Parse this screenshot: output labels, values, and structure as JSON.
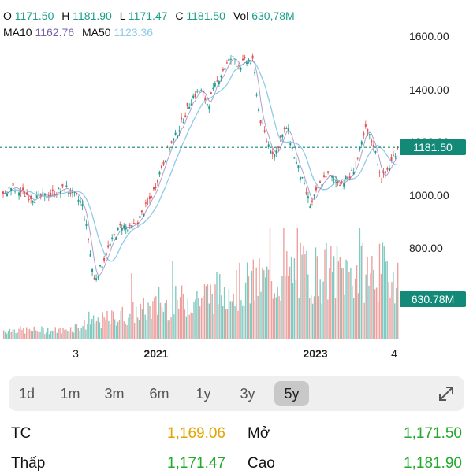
{
  "legend": {
    "o_label": "O",
    "o_value": "1171.50",
    "h_label": "H",
    "h_value": "1181.90",
    "l_label": "L",
    "l_value": "1171.47",
    "c_label": "C",
    "c_value": "1181.50",
    "vol_label": "Vol",
    "vol_value": "630,78M",
    "ma10_label": "MA10",
    "ma10_value": "1162.76",
    "ma50_label": "MA50",
    "ma50_value": "1123.36"
  },
  "price_axis": [
    "1600.00",
    "1400.00",
    "1200.00",
    "1000.00",
    "800.00"
  ],
  "current_price_label": "1181.50",
  "current_volume_label": "630.78M",
  "time_axis": [
    {
      "label": "3",
      "bold": false
    },
    {
      "label": "2021",
      "bold": true
    },
    {
      "label": "2023",
      "bold": true
    },
    {
      "label": "4",
      "bold": false
    }
  ],
  "ranges": [
    "1d",
    "1m",
    "3m",
    "6m",
    "1y",
    "3y",
    "5y"
  ],
  "active_range": "5y",
  "stats": {
    "tc_label": "TC",
    "tc_value": "1,169.06",
    "open_label": "Mở",
    "open_value": "1,171.50",
    "low_label": "Thấp",
    "low_value": "1,171.47",
    "high_label": "Cao",
    "high_value": "1,181.90"
  },
  "colors": {
    "up": "#1a9e8a",
    "down": "#e0524f",
    "ma10": "#7b5ea8",
    "ma50": "#8ecbe8",
    "price_label_bg": "#128a77"
  },
  "chart_data": {
    "type": "line",
    "ylim": [
      700,
      1700
    ],
    "current_price": 1181.5,
    "price_series": [
      [
        0,
        1000
      ],
      [
        0.02,
        1030
      ],
      [
        0.05,
        1010
      ],
      [
        0.08,
        990
      ],
      [
        0.11,
        1000
      ],
      [
        0.14,
        1015
      ],
      [
        0.16,
        1030
      ],
      [
        0.18,
        1000
      ],
      [
        0.2,
        970
      ],
      [
        0.215,
        850
      ],
      [
        0.23,
        680
      ],
      [
        0.245,
        720
      ],
      [
        0.26,
        780
      ],
      [
        0.28,
        840
      ],
      [
        0.3,
        890
      ],
      [
        0.32,
        870
      ],
      [
        0.34,
        900
      ],
      [
        0.36,
        950
      ],
      [
        0.38,
        1010
      ],
      [
        0.4,
        1100
      ],
      [
        0.42,
        1180
      ],
      [
        0.44,
        1230
      ],
      [
        0.46,
        1300
      ],
      [
        0.48,
        1370
      ],
      [
        0.5,
        1400
      ],
      [
        0.52,
        1340
      ],
      [
        0.54,
        1420
      ],
      [
        0.56,
        1480
      ],
      [
        0.58,
        1520
      ],
      [
        0.6,
        1490
      ],
      [
        0.62,
        1510
      ],
      [
        0.635,
        1500
      ],
      [
        0.65,
        1300
      ],
      [
        0.67,
        1200
      ],
      [
        0.69,
        1150
      ],
      [
        0.7,
        1200
      ],
      [
        0.72,
        1260
      ],
      [
        0.74,
        1140
      ],
      [
        0.76,
        1050
      ],
      [
        0.78,
        960
      ],
      [
        0.8,
        1030
      ],
      [
        0.82,
        1080
      ],
      [
        0.84,
        1060
      ],
      [
        0.86,
        1050
      ],
      [
        0.88,
        1070
      ],
      [
        0.9,
        1140
      ],
      [
        0.92,
        1250
      ],
      [
        0.94,
        1190
      ],
      [
        0.96,
        1060
      ],
      [
        0.98,
        1110
      ],
      [
        1.0,
        1181.5
      ]
    ],
    "volume_series_max": 1
  }
}
